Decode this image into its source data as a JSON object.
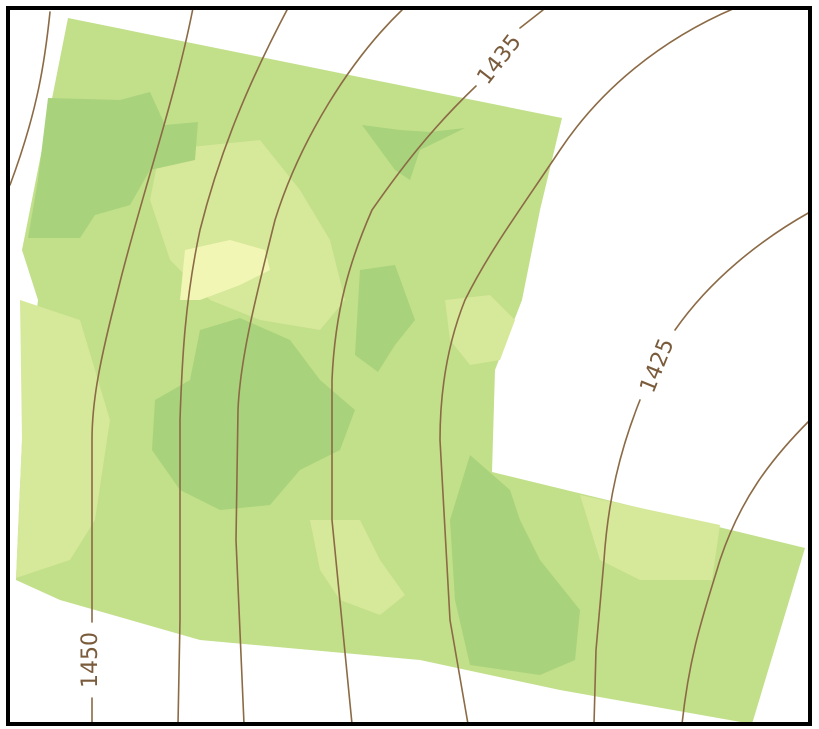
{
  "map": {
    "colors": {
      "frame": "#000000",
      "contour": "#8b6a45",
      "label": "#7a5b3b",
      "yield_light": "#d6e89a",
      "yield_mid": "#c2df8a",
      "yield_dark": "#a8d27c",
      "yield_highlight": "#f2f6b4"
    },
    "contour_labels": [
      {
        "id": "label-1450",
        "text": "1450"
      },
      {
        "id": "label-1435",
        "text": "1435"
      },
      {
        "id": "label-1425",
        "text": "1425"
      }
    ]
  }
}
